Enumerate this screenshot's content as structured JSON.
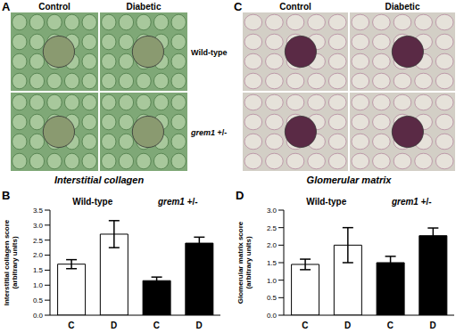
{
  "image_panels": [
    {
      "panel": "A",
      "columns": [
        "Control",
        "Diabetic"
      ],
      "rows": [
        "Wild-type",
        "grem1 +/-"
      ],
      "caption": "Interstitial collagen"
    },
    {
      "panel": "C",
      "columns": [
        "Control",
        "Diabetic"
      ],
      "caption": "Glomerular matrix"
    }
  ],
  "chart_data": [
    {
      "panel": "B",
      "type": "bar",
      "ylabel": "Interstitial collagen score (arbitrary units)",
      "categories": [
        "C",
        "D",
        "C",
        "D"
      ],
      "group_labels": [
        "Wild-type",
        "grem1 +/-"
      ],
      "values": [
        1.7,
        2.7,
        1.15,
        2.4
      ],
      "errors": [
        0.15,
        0.45,
        0.12,
        0.2
      ],
      "colors": [
        "#ffffff",
        "#ffffff",
        "#000000",
        "#000000"
      ],
      "ylim": [
        0,
        3.5
      ],
      "yticks": [
        {
          "value": 0,
          "label": "0.0"
        },
        0.5,
        {
          "value": 1,
          "label": "1.0"
        },
        1.5,
        {
          "value": 2,
          "label": "2.0"
        },
        2.5,
        {
          "value": 3,
          "label": "3.0"
        },
        3.5
      ]
    },
    {
      "panel": "D",
      "type": "bar",
      "ylabel": "Glomerular matrix score (arbitrary units)",
      "categories": [
        "C",
        "D",
        "C",
        "D"
      ],
      "group_labels": [
        "Wild-type",
        "grem1 +/-"
      ],
      "values": [
        1.45,
        2.0,
        1.5,
        2.27
      ],
      "errors": [
        0.15,
        0.5,
        0.18,
        0.22
      ],
      "colors": [
        "#ffffff",
        "#ffffff",
        "#000000",
        "#000000"
      ],
      "ylim": [
        0,
        3
      ],
      "yticks": [
        {
          "value": 0,
          "label": "0.0"
        },
        0.5,
        {
          "value": 1,
          "label": "1.0"
        },
        1.5,
        {
          "value": 2,
          "label": "2.0"
        },
        2.5,
        {
          "value": 3,
          "label": "3.0"
        }
      ]
    }
  ]
}
